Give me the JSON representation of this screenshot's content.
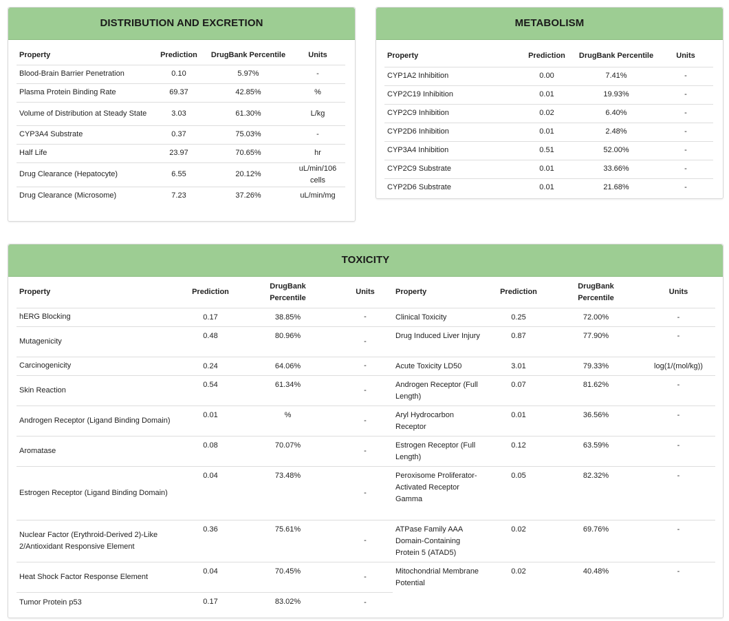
{
  "distribution": {
    "title": "DISTRIBUTION AND EXCRETION",
    "headers": {
      "property": "Property",
      "prediction": "Prediction",
      "percentile": "DrugBank Percentile",
      "units": "Units"
    },
    "rows": [
      {
        "property": "Blood-Brain Barrier Penetration",
        "prediction": "0.10",
        "percentile": "5.97%",
        "units": "-"
      },
      {
        "property": "Plasma Protein Binding Rate",
        "prediction": "69.37",
        "percentile": "42.85%",
        "units": "%"
      },
      {
        "property": "Volume of Distribution at Steady State",
        "prediction": "3.03",
        "percentile": "61.30%",
        "units": "L/kg"
      },
      {
        "property": "CYP3A4 Substrate",
        "prediction": "0.37",
        "percentile": "75.03%",
        "units": "-"
      },
      {
        "property": "Half Life",
        "prediction": "23.97",
        "percentile": "70.65%",
        "units": "hr"
      },
      {
        "property": "Drug Clearance (Hepatocyte)",
        "prediction": "6.55",
        "percentile": "20.12%",
        "units": "uL/min/106 cells"
      },
      {
        "property": "Drug Clearance (Microsome)",
        "prediction": "7.23",
        "percentile": "37.26%",
        "units": "uL/min/mg"
      }
    ]
  },
  "metabolism": {
    "title": "METABOLISM",
    "headers": {
      "property": "Property",
      "prediction": "Prediction",
      "percentile": "DrugBank Percentile",
      "units": "Units"
    },
    "rows": [
      {
        "property": "CYP1A2 Inhibition",
        "prediction": "0.00",
        "percentile": "7.41%",
        "units": "-"
      },
      {
        "property": "CYP2C19 Inhibition",
        "prediction": "0.01",
        "percentile": "19.93%",
        "units": "-"
      },
      {
        "property": "CYP2C9 Inhibition",
        "prediction": "0.02",
        "percentile": "6.40%",
        "units": "-"
      },
      {
        "property": "CYP2D6 Inhibition",
        "prediction": "0.01",
        "percentile": "2.48%",
        "units": "-"
      },
      {
        "property": "CYP3A4 Inhibition",
        "prediction": "0.51",
        "percentile": "52.00%",
        "units": "-"
      },
      {
        "property": "CYP2C9 Substrate",
        "prediction": "0.01",
        "percentile": "33.66%",
        "units": "-"
      },
      {
        "property": "CYP2D6 Substrate",
        "prediction": "0.01",
        "percentile": "21.68%",
        "units": "-"
      }
    ]
  },
  "toxicity": {
    "title": "TOXICITY",
    "headers": {
      "property": "Property",
      "prediction": "Prediction",
      "percentile": "DrugBank Percentile",
      "units": "Units"
    },
    "rows": [
      {
        "l": {
          "property": "hERG Blocking",
          "prediction": "0.17",
          "percentile": "38.85%",
          "units": "-"
        },
        "r": {
          "property": "Clinical Toxicity",
          "prediction": "0.25",
          "percentile": "72.00%",
          "units": "-"
        }
      },
      {
        "l": {
          "property": "Mutagenicity",
          "prediction": "0.48",
          "percentile": "80.96%",
          "units": "-"
        },
        "r": {
          "property": "Drug Induced Liver Injury",
          "prediction": "0.87",
          "percentile": "77.90%",
          "units": "-"
        }
      },
      {
        "l": {
          "property": "Carcinogenicity",
          "prediction": "0.24",
          "percentile": "64.06%",
          "units": "-"
        },
        "r": {
          "property": "Acute Toxicity LD50",
          "prediction": "3.01",
          "percentile": "79.33%",
          "units": "log(1/(mol/kg))"
        }
      },
      {
        "l": {
          "property": "Skin Reaction",
          "prediction": "0.54",
          "percentile": "61.34%",
          "units": "-"
        },
        "r": {
          "property": "Androgen Receptor (Full Length)",
          "prediction": "0.07",
          "percentile": "81.62%",
          "units": "-"
        }
      },
      {
        "l": {
          "property": "Androgen Receptor (Ligand Binding Domain)",
          "prediction": "0.01",
          "percentile": "%",
          "units": "-"
        },
        "r": {
          "property": "Aryl Hydrocarbon Receptor",
          "prediction": "0.01",
          "percentile": "36.56%",
          "units": "-"
        }
      },
      {
        "l": {
          "property": "Aromatase",
          "prediction": "0.08",
          "percentile": "70.07%",
          "units": "-"
        },
        "r": {
          "property": "Estrogen Receptor (Full Length)",
          "prediction": "0.12",
          "percentile": "63.59%",
          "units": "-"
        }
      },
      {
        "l": {
          "property": "Estrogen Receptor (Ligand Binding Domain)",
          "prediction": "0.04",
          "percentile": "73.48%",
          "units": "-"
        },
        "r": {
          "property": "Peroxisome Proliferator-Activated Receptor Gamma",
          "prediction": "0.05",
          "percentile": "82.32%",
          "units": "-"
        }
      },
      {
        "l": {
          "property": "Nuclear Factor (Erythroid-Derived 2)-Like 2/Antioxidant Responsive Element",
          "prediction": "0.36",
          "percentile": "75.61%",
          "units": "-"
        },
        "r": {
          "property": "ATPase Family AAA Domain-Containing Protein 5 (ATAD5)",
          "prediction": "0.02",
          "percentile": "69.76%",
          "units": "-"
        }
      },
      {
        "l": {
          "property": "Heat Shock Factor Response Element",
          "prediction": "0.04",
          "percentile": "70.45%",
          "units": "-"
        },
        "r": {
          "property": "Mitochondrial Membrane Potential",
          "prediction": "0.02",
          "percentile": "40.48%",
          "units": "-"
        }
      },
      {
        "l": {
          "property": "Tumor Protein p53",
          "prediction": "0.17",
          "percentile": "83.02%",
          "units": "-"
        },
        "r": {
          "property": "",
          "prediction": "",
          "percentile": "",
          "units": ""
        }
      }
    ]
  }
}
